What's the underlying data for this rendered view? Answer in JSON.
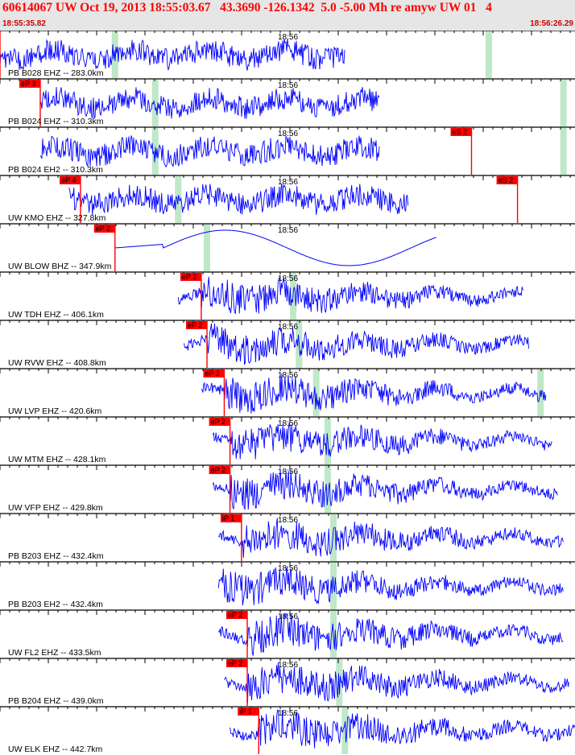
{
  "header": {
    "title": "60614067 UW Oct 19, 2013 18:55:03.67   43.3690 -126.1342  5.0 -5.00 Mh re amyw UW 01   4",
    "start_time": "18:55:35.82",
    "end_time": "18:56:26.29"
  },
  "colors": {
    "waveform": "#0000ff",
    "pick": "#ff0000",
    "marker": "#bfe8c8",
    "header_bg": "#e6e6e6",
    "header_text": "#ff0000"
  },
  "time_label": "18:56",
  "channels": [
    {
      "label": "PB B028 EHZ -- 283.0km",
      "picks": [
        {
          "text": "iP 1",
          "t": 0.0
        }
      ],
      "green": [
        0.2,
        0.85
      ],
      "signal": {
        "start": 0.0,
        "end": 0.6,
        "kind": "noise"
      }
    },
    {
      "label": "PB B024 EHZ -- 310.3km",
      "picks": [
        {
          "text": "eP 3",
          "t": 0.07
        }
      ],
      "green": [
        0.27,
        0.98
      ],
      "signal": {
        "start": 0.07,
        "end": 0.66,
        "kind": "noise"
      }
    },
    {
      "label": "PB B024 EH2 -- 310.3km",
      "picks": [
        {
          "text": "eS 2",
          "t": 0.82
        }
      ],
      "green": [
        0.27,
        0.98
      ],
      "signal": {
        "start": 0.07,
        "end": 0.66,
        "kind": "noise"
      }
    },
    {
      "label": "UW KMO EHZ -- 327.8km",
      "picks": [
        {
          "text": "eP 4",
          "t": 0.14
        },
        {
          "text": "eS 2",
          "t": 0.9
        }
      ],
      "green": [
        0.31
      ],
      "signal": {
        "start": 0.12,
        "end": 0.71,
        "kind": "noise"
      }
    },
    {
      "label": "UW BLOW BHZ -- 347.9km",
      "picks": [
        {
          "text": "eP 2",
          "t": 0.2
        }
      ],
      "green": [
        0.36
      ],
      "signal": {
        "start": 0.2,
        "end": 0.76,
        "kind": "swell"
      }
    },
    {
      "label": "UW TDH EHZ -- 406.1km",
      "picks": [
        {
          "text": "eP 2",
          "t": 0.35
        }
      ],
      "green": [
        0.51
      ],
      "signal": {
        "start": 0.31,
        "end": 0.91,
        "kind": "quake"
      }
    },
    {
      "label": "UW RVW EHZ -- 408.8km",
      "picks": [
        {
          "text": "eP 2",
          "t": 0.36
        }
      ],
      "green": [
        0.52
      ],
      "signal": {
        "start": 0.32,
        "end": 0.92,
        "kind": "quake"
      }
    },
    {
      "label": "UW LVP EHZ -- 420.6km",
      "picks": [
        {
          "text": "eP 2",
          "t": 0.39
        }
      ],
      "green": [
        0.55,
        0.94
      ],
      "signal": {
        "start": 0.35,
        "end": 0.95,
        "kind": "quake"
      }
    },
    {
      "label": "UW MTM EHZ -- 428.1km",
      "picks": [
        {
          "text": "eP 2",
          "t": 0.4
        }
      ],
      "green": [
        0.57
      ],
      "signal": {
        "start": 0.37,
        "end": 0.96,
        "kind": "quake"
      }
    },
    {
      "label": "UW VFP EHZ -- 429.8km",
      "picks": [
        {
          "text": "eP 2",
          "t": 0.4
        }
      ],
      "green": [
        0.57
      ],
      "signal": {
        "start": 0.37,
        "end": 0.97,
        "kind": "quake"
      }
    },
    {
      "label": "PB B203 EHZ -- 432.4km",
      "picks": [
        {
          "text": "iP 1",
          "t": 0.42
        }
      ],
      "green": [
        0.58
      ],
      "signal": {
        "start": 0.38,
        "end": 0.98,
        "kind": "quake"
      }
    },
    {
      "label": "PB B203 EH2 -- 432.4km",
      "picks": [],
      "green": [
        0.58
      ],
      "signal": {
        "start": 0.38,
        "end": 0.98,
        "kind": "quake"
      }
    },
    {
      "label": "UW FL2 EHZ -- 433.5km",
      "picks": [
        {
          "text": "eP 2",
          "t": 0.43
        }
      ],
      "green": [
        0.58
      ],
      "signal": {
        "start": 0.38,
        "end": 0.98,
        "kind": "quake"
      }
    },
    {
      "label": "PB B204 EHZ -- 439.0km",
      "picks": [
        {
          "text": "eP 2",
          "t": 0.43
        }
      ],
      "green": [
        0.59
      ],
      "signal": {
        "start": 0.39,
        "end": 0.99,
        "kind": "quake"
      }
    },
    {
      "label": "UW ELK EHZ -- 442.7km",
      "picks": [
        {
          "text": "iP 1",
          "t": 0.45
        }
      ],
      "green": [
        0.6
      ],
      "signal": {
        "start": 0.4,
        "end": 1.0,
        "kind": "quake"
      }
    }
  ]
}
